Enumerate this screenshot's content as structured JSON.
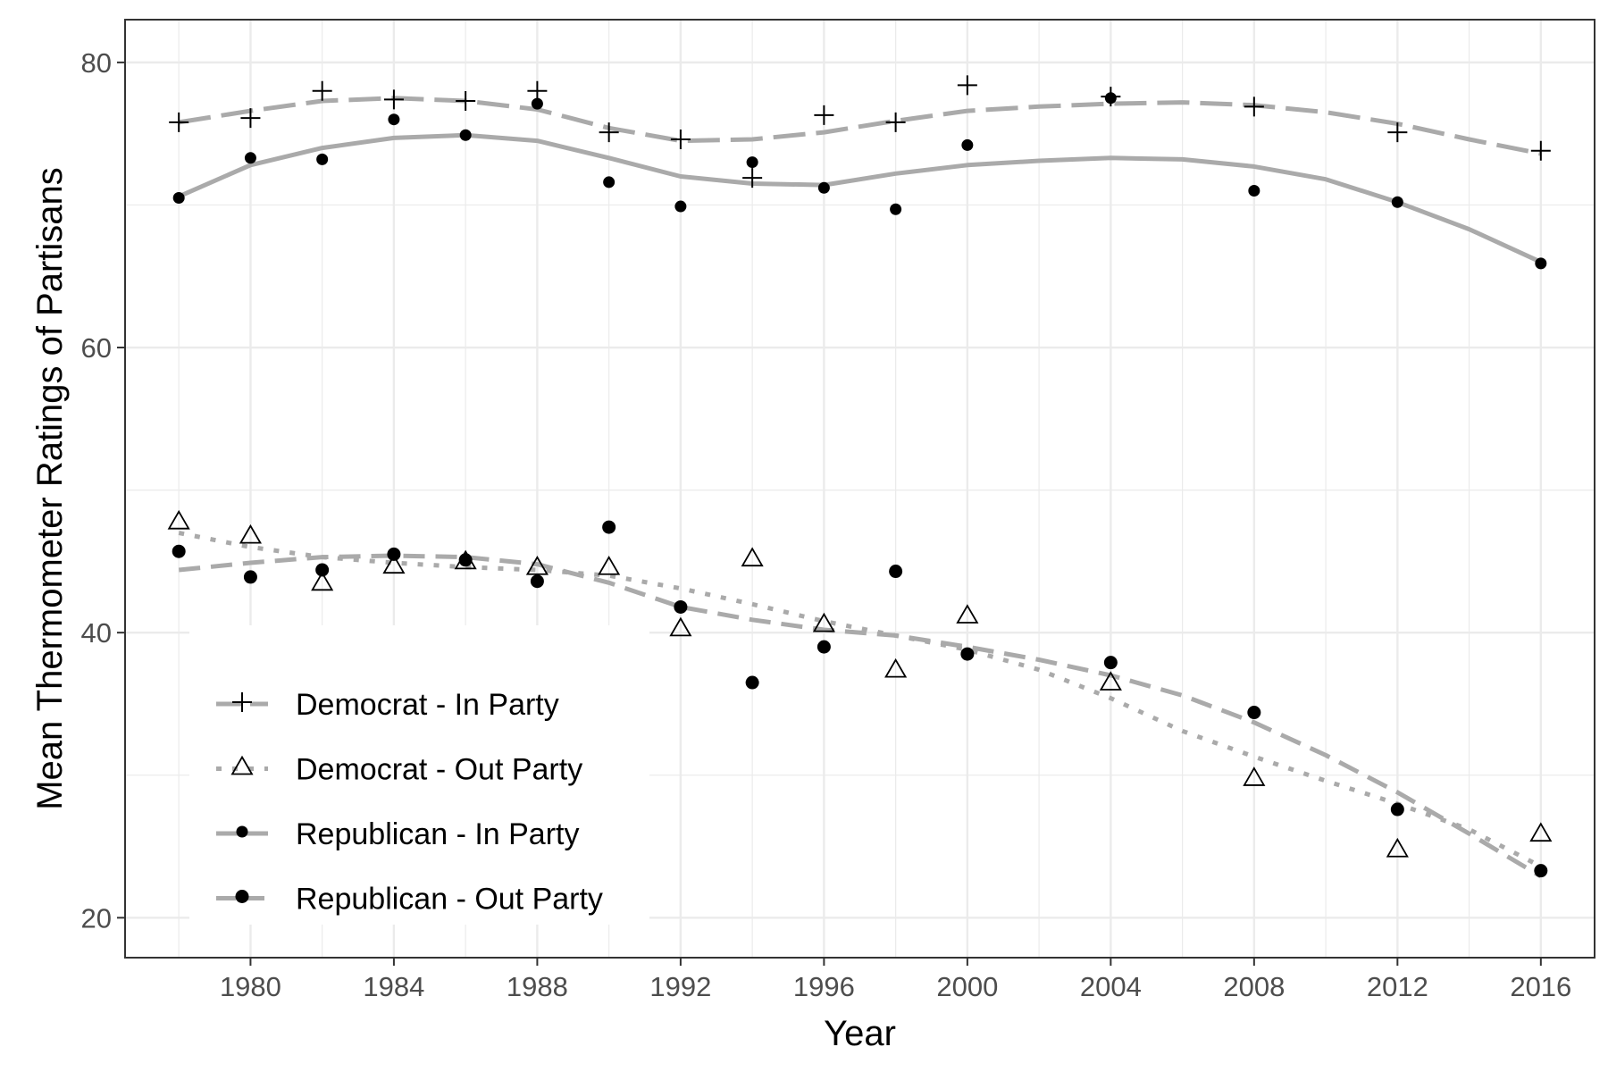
{
  "chart_data": {
    "type": "scatter",
    "title": "",
    "xlabel": "Year",
    "ylabel": "Mean Thermometer Ratings of Partisans",
    "xlim": [
      1976.5,
      2017.5
    ],
    "ylim": [
      17.2,
      83.0
    ],
    "xticks": [
      "1980",
      "1984",
      "1988",
      "1992",
      "1996",
      "2000",
      "2004",
      "2008",
      "2012",
      "2016"
    ],
    "yticks": [
      "20",
      "40",
      "60",
      "80"
    ],
    "grid": true,
    "legend_position": "inside-bottom-left",
    "colors": {
      "line": "#aaaaaa",
      "point": "#000000",
      "panel_border": "#333333",
      "grid": "#ebebeb"
    },
    "series": [
      {
        "name": "Democrat - In Party",
        "marker": "plus",
        "line_style": "longdash",
        "x": [
          1978,
          1980,
          1982,
          1984,
          1986,
          1988,
          1990,
          1992,
          1994,
          1996,
          1998,
          2000,
          2004,
          2008,
          2012,
          2016
        ],
        "y": [
          75.8,
          76.1,
          78.0,
          77.4,
          77.3,
          78.0,
          75.1,
          74.6,
          71.9,
          76.3,
          75.8,
          78.4,
          77.6,
          76.9,
          75.1,
          73.8
        ],
        "trend": [
          [
            1978,
            75.8
          ],
          [
            1980,
            76.6
          ],
          [
            1982,
            77.3
          ],
          [
            1984,
            77.5
          ],
          [
            1986,
            77.3
          ],
          [
            1988,
            76.7
          ],
          [
            1990,
            75.4
          ],
          [
            1992,
            74.5
          ],
          [
            1994,
            74.6
          ],
          [
            1996,
            75.1
          ],
          [
            1998,
            75.9
          ],
          [
            2000,
            76.6
          ],
          [
            2002,
            76.9
          ],
          [
            2004,
            77.1
          ],
          [
            2006,
            77.2
          ],
          [
            2008,
            77.0
          ],
          [
            2010,
            76.5
          ],
          [
            2012,
            75.7
          ],
          [
            2014,
            74.6
          ],
          [
            2016,
            73.6
          ]
        ]
      },
      {
        "name": "Democrat - Out Party",
        "marker": "triangle",
        "line_style": "dotted",
        "x": [
          1978,
          1980,
          1982,
          1984,
          1986,
          1988,
          1990,
          1992,
          1994,
          1996,
          1998,
          2000,
          2004,
          2008,
          2012,
          2016
        ],
        "y": [
          47.8,
          46.8,
          43.5,
          44.7,
          45.0,
          44.6,
          44.6,
          40.3,
          45.2,
          40.6,
          37.4,
          41.2,
          36.5,
          29.8,
          24.8,
          25.9
        ],
        "trend": [
          [
            1978,
            47.0
          ],
          [
            1980,
            46.0
          ],
          [
            1982,
            45.3
          ],
          [
            1984,
            44.9
          ],
          [
            1986,
            44.6
          ],
          [
            1988,
            44.4
          ],
          [
            1990,
            44.0
          ],
          [
            1992,
            43.1
          ],
          [
            1994,
            42.0
          ],
          [
            1996,
            40.8
          ],
          [
            1998,
            39.8
          ],
          [
            2000,
            38.8
          ],
          [
            2002,
            37.4
          ],
          [
            2004,
            35.4
          ],
          [
            2006,
            33.1
          ],
          [
            2008,
            31.3
          ],
          [
            2010,
            29.6
          ],
          [
            2012,
            28.0
          ],
          [
            2014,
            26.2
          ],
          [
            2016,
            23.6
          ]
        ]
      },
      {
        "name": "Republican - In Party",
        "marker": "circle-small",
        "line_style": "solid",
        "x": [
          1978,
          1980,
          1982,
          1984,
          1986,
          1988,
          1990,
          1992,
          1994,
          1996,
          1998,
          2000,
          2004,
          2008,
          2012,
          2016
        ],
        "y": [
          70.5,
          73.3,
          73.2,
          76.0,
          74.9,
          77.1,
          71.6,
          69.9,
          73.0,
          71.2,
          69.7,
          74.2,
          77.5,
          71.0,
          70.2,
          65.9
        ],
        "trend": [
          [
            1978,
            70.6
          ],
          [
            1980,
            72.8
          ],
          [
            1982,
            74.0
          ],
          [
            1984,
            74.7
          ],
          [
            1986,
            74.9
          ],
          [
            1988,
            74.5
          ],
          [
            1990,
            73.3
          ],
          [
            1992,
            72.0
          ],
          [
            1994,
            71.5
          ],
          [
            1996,
            71.4
          ],
          [
            1998,
            72.2
          ],
          [
            2000,
            72.8
          ],
          [
            2002,
            73.1
          ],
          [
            2004,
            73.3
          ],
          [
            2006,
            73.2
          ],
          [
            2008,
            72.7
          ],
          [
            2010,
            71.8
          ],
          [
            2012,
            70.2
          ],
          [
            2014,
            68.3
          ],
          [
            2016,
            66.0
          ]
        ]
      },
      {
        "name": "Republican - Out Party",
        "marker": "circle",
        "line_style": "dashed",
        "x": [
          1978,
          1980,
          1982,
          1984,
          1986,
          1988,
          1990,
          1992,
          1994,
          1996,
          1998,
          2000,
          2004,
          2008,
          2012,
          2016
        ],
        "y": [
          45.7,
          43.9,
          44.4,
          45.5,
          45.1,
          43.6,
          47.4,
          41.8,
          36.5,
          39.0,
          44.3,
          38.5,
          37.9,
          34.4,
          27.6,
          23.3
        ],
        "trend": [
          [
            1978,
            44.4
          ],
          [
            1980,
            44.9
          ],
          [
            1982,
            45.3
          ],
          [
            1984,
            45.4
          ],
          [
            1986,
            45.3
          ],
          [
            1988,
            44.8
          ],
          [
            1990,
            43.5
          ],
          [
            1992,
            41.8
          ],
          [
            1994,
            40.9
          ],
          [
            1996,
            40.2
          ],
          [
            1998,
            39.8
          ],
          [
            2000,
            39.0
          ],
          [
            2002,
            38.1
          ],
          [
            2004,
            37.0
          ],
          [
            2006,
            35.6
          ],
          [
            2008,
            33.7
          ],
          [
            2010,
            31.4
          ],
          [
            2012,
            28.8
          ],
          [
            2014,
            25.9
          ],
          [
            2016,
            22.9
          ]
        ]
      }
    ]
  }
}
